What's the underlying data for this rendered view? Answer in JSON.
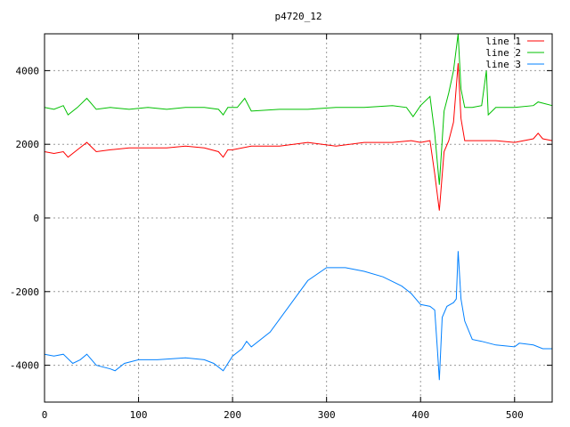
{
  "chart_data": {
    "type": "line",
    "title": "p4720_12",
    "xlabel": "",
    "ylabel": "",
    "xlim": [
      0,
      540
    ],
    "ylim": [
      -5000,
      5000
    ],
    "x_ticks": [
      0,
      100,
      200,
      300,
      400,
      500
    ],
    "y_ticks": [
      -4000,
      -2000,
      0,
      2000,
      4000
    ],
    "grid": true,
    "legend_position": "top-right",
    "series": [
      {
        "name": "line 1",
        "color": "#ff0000",
        "x": [
          0,
          10,
          20,
          25,
          35,
          45,
          55,
          70,
          90,
          110,
          130,
          150,
          170,
          185,
          190,
          195,
          200,
          220,
          250,
          280,
          310,
          340,
          370,
          390,
          400,
          410,
          415,
          420,
          425,
          430,
          435,
          440,
          443,
          447,
          460,
          480,
          500,
          520,
          525,
          530,
          540
        ],
        "y": [
          1800,
          1750,
          1800,
          1650,
          1850,
          2050,
          1800,
          1850,
          1900,
          1900,
          1900,
          1950,
          1900,
          1800,
          1650,
          1850,
          1850,
          1950,
          1950,
          2050,
          1950,
          2050,
          2050,
          2100,
          2050,
          2100,
          1200,
          200,
          1800,
          2100,
          2600,
          4200,
          2700,
          2100,
          2100,
          2100,
          2050,
          2150,
          2300,
          2150,
          2100
        ]
      },
      {
        "name": "line 2",
        "color": "#00c000",
        "x": [
          0,
          10,
          20,
          25,
          35,
          45,
          55,
          70,
          90,
          110,
          130,
          150,
          170,
          185,
          190,
          195,
          205,
          213,
          220,
          250,
          280,
          310,
          340,
          370,
          385,
          392,
          400,
          410,
          415,
          420,
          425,
          430,
          435,
          440,
          443,
          447,
          455,
          465,
          470,
          472,
          480,
          500,
          520,
          525,
          540
        ],
        "y": [
          3000,
          2950,
          3050,
          2800,
          3000,
          3250,
          2950,
          3000,
          2950,
          3000,
          2950,
          3000,
          3000,
          2950,
          2800,
          3000,
          3000,
          3250,
          2900,
          2950,
          2950,
          3000,
          3000,
          3050,
          3000,
          2750,
          3050,
          3300,
          2300,
          900,
          2900,
          3400,
          4000,
          5000,
          3500,
          3000,
          3000,
          3050,
          4000,
          2800,
          3000,
          3000,
          3050,
          3150,
          3050
        ]
      },
      {
        "name": "line 3",
        "color": "#0080ff",
        "x": [
          0,
          10,
          20,
          30,
          38,
          45,
          55,
          70,
          75,
          85,
          100,
          120,
          150,
          170,
          180,
          190,
          200,
          210,
          215,
          220,
          240,
          260,
          280,
          300,
          320,
          340,
          360,
          380,
          390,
          400,
          410,
          415,
          418,
          420,
          423,
          428,
          435,
          438,
          440,
          443,
          447,
          455,
          465,
          480,
          500,
          505,
          520,
          530,
          540
        ],
        "y": [
          -3700,
          -3750,
          -3700,
          -3950,
          -3850,
          -3700,
          -4000,
          -4100,
          -4150,
          -3950,
          -3850,
          -3850,
          -3800,
          -3850,
          -3950,
          -4150,
          -3750,
          -3550,
          -3350,
          -3500,
          -3100,
          -2400,
          -1700,
          -1350,
          -1350,
          -1450,
          -1600,
          -1850,
          -2050,
          -2350,
          -2400,
          -2500,
          -3600,
          -4400,
          -2700,
          -2400,
          -2300,
          -2200,
          -900,
          -2200,
          -2800,
          -3300,
          -3350,
          -3450,
          -3500,
          -3400,
          -3450,
          -3550,
          -3550
        ]
      }
    ]
  }
}
